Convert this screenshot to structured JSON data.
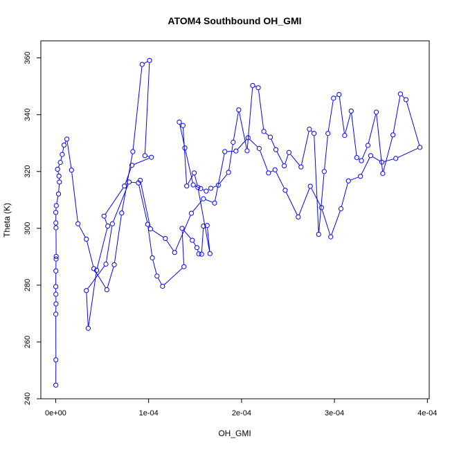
{
  "chart_data": {
    "type": "scatter",
    "title": "ATOM4 Southbound OH_GMI",
    "xlabel": "OH_GMI",
    "ylabel": "Theta (K)",
    "xlim": [
      -1.6e-05,
      0.000402
    ],
    "ylim": [
      240,
      366
    ],
    "x_ticks": [
      0,
      0.0001,
      0.0002,
      0.0003,
      0.0004
    ],
    "x_tick_labels": [
      "0e+00",
      "1e-04",
      "2e-04",
      "3e-04",
      "4e-04"
    ],
    "y_ticks": [
      240,
      260,
      280,
      300,
      320,
      340,
      360
    ],
    "y_tick_labels": [
      "240",
      "260",
      "280",
      "300",
      "320",
      "340",
      "360"
    ],
    "grid": false,
    "marker": "open-circle",
    "connected": true,
    "color": "#0000ff",
    "series": [
      {
        "x": [
          1e-07,
          2e-07,
          1e-07,
          3e-07,
          2e-07,
          1e-07,
          2e-07,
          4e-07,
          5e-07,
          3e-07,
          2e-07,
          1e-07,
          6e-07,
          3e-06,
          4e-06,
          3.5e-06,
          2e-06,
          5e-06,
          7e-06,
          9e-06,
          1.2e-05,
          1.7e-05,
          2.4e-05,
          3.3e-05,
          4.1e-05,
          5.5e-05,
          6.3e-05,
          7.1e-05,
          8.3e-05,
          9.3e-05,
          0.000101,
          9.6e-05,
          0.000103,
          8.2e-05,
          7.4e-05,
          5.2e-05,
          5.6e-05,
          4.4e-05,
          3.5e-05,
          3.3e-05,
          5.4e-05,
          6.1e-05,
          7.9e-05,
          8.9e-05,
          9.9e-05,
          0.000104,
          0.000109,
          0.000115,
          0.000138,
          0.000136,
          0.000147,
          0.000152,
          0.000154,
          0.000157,
          0.000159,
          0.000163,
          0.000166,
          0.000153,
          0.000149,
          0.000141,
          0.000137,
          0.000133,
          0.000139,
          0.000148,
          0.000156,
          0.000162,
          0.000167,
          0.000175,
          0.000186,
          0.000191,
          0.000197,
          0.000206,
          0.000212,
          0.000218,
          0.000224,
          0.000231,
          0.000237,
          0.000246,
          0.000251,
          0.000264,
          0.000273,
          0.000278,
          0.000283,
          0.000289,
          0.000293,
          0.000299,
          0.000305,
          0.000311,
          0.000318,
          0.000324,
          0.000329,
          0.000336,
          0.000345,
          0.000352,
          0.000363,
          0.000371,
          0.000377,
          0.000392,
          0.000366,
          0.000351,
          0.000339,
          0.000328,
          0.000315,
          0.000307,
          0.000296,
          0.000286,
          0.000274,
          0.000261,
          0.000247,
          0.000236,
          0.000229,
          0.000219,
          0.000207,
          0.000194,
          0.000182,
          0.000171,
          0.000159,
          0.000146,
          0.000128,
          0.000118,
          0.000102,
          9.1e-05
        ],
        "y": [
          244.8,
          253.7,
          269.8,
          273.4,
          276.8,
          279.5,
          285.0,
          289.2,
          290.1,
          300.2,
          301.9,
          305.6,
          308.0,
          312.1,
          316.3,
          318.4,
          320.8,
          323.2,
          326.0,
          329.3,
          331.4,
          320.5,
          301.6,
          296.2,
          285.8,
          278.4,
          287.2,
          305.4,
          327.0,
          357.7,
          359.1,
          325.6,
          325.0,
          322.2,
          314.9,
          304.3,
          300.8,
          285.2,
          264.8,
          278.1,
          287.4,
          301.6,
          316.3,
          316.0,
          301.4,
          289.6,
          283.2,
          279.6,
          286.5,
          300.0,
          295.8,
          293.2,
          291.0,
          290.9,
          300.8,
          301.0,
          291.1,
          314.4,
          319.5,
          314.9,
          336.2,
          337.4,
          328.3,
          315.3,
          314.0,
          313.1,
          314.1,
          315.2,
          319.7,
          330.3,
          341.7,
          327.3,
          350.3,
          349.5,
          334.1,
          332.1,
          327.7,
          322.0,
          326.7,
          321.6,
          334.9,
          333.4,
          297.9,
          320.0,
          333.4,
          345.8,
          347.1,
          332.7,
          341.3,
          324.9,
          323.8,
          329.2,
          340.9,
          319.3,
          332.9,
          347.3,
          345.3,
          328.5,
          324.6,
          323.3,
          325.6,
          318.3,
          316.7,
          306.9,
          297.0,
          307.3,
          314.8,
          304.0,
          313.4,
          320.6,
          319.5,
          328.1,
          331.9,
          327.2,
          327.0,
          308.9,
          310.4,
          305.3,
          291.5,
          296.4,
          299.8,
          316.9
        ]
      }
    ]
  }
}
